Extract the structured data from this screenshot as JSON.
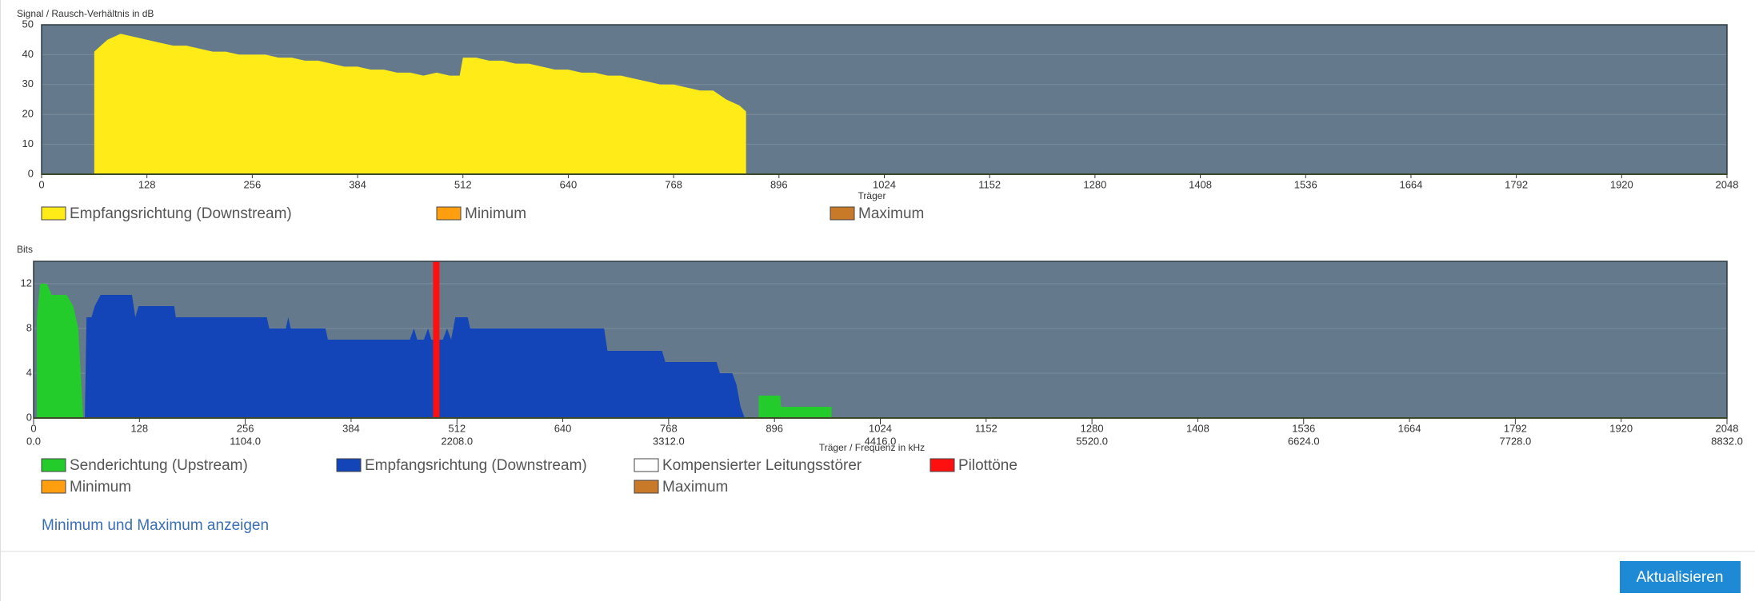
{
  "chart_data": [
    {
      "type": "area",
      "title": "Signal / Rausch-Verhältnis in dB",
      "x_label": "Träger",
      "xlim": [
        0,
        2048
      ],
      "xticks": [
        0,
        128,
        256,
        384,
        512,
        640,
        768,
        896,
        1024,
        1152,
        1280,
        1408,
        1536,
        1664,
        1792,
        1920,
        2048
      ],
      "ylim": [
        0,
        50
      ],
      "yticks": [
        0,
        10,
        20,
        30,
        40,
        50
      ],
      "grid": true,
      "series": [
        {
          "name": "Empfangsrichtung (Downstream)",
          "color": "#ffeb17",
          "x": [
            64,
            80,
            96,
            112,
            128,
            144,
            160,
            176,
            192,
            208,
            224,
            240,
            256,
            272,
            288,
            304,
            320,
            336,
            352,
            368,
            384,
            400,
            416,
            432,
            448,
            464,
            480,
            496,
            508,
            512,
            528,
            544,
            560,
            576,
            592,
            608,
            624,
            640,
            656,
            672,
            688,
            704,
            720,
            736,
            752,
            768,
            784,
            800,
            816,
            832,
            848,
            856
          ],
          "values": [
            41,
            45,
            47,
            46,
            45,
            44,
            43,
            43,
            42,
            41,
            41,
            40,
            40,
            40,
            39,
            39,
            38,
            38,
            37,
            36,
            36,
            35,
            35,
            34,
            34,
            33,
            34,
            33,
            33,
            39,
            39,
            38,
            38,
            37,
            37,
            36,
            35,
            35,
            34,
            34,
            33,
            33,
            32,
            31,
            30,
            30,
            29,
            28,
            28,
            25,
            23,
            21
          ]
        }
      ],
      "legend": [
        {
          "name": "Minimum",
          "color": "#ff9f10"
        },
        {
          "name": "Maximum",
          "color": "#c87a28"
        }
      ]
    },
    {
      "type": "area",
      "title": "Bits",
      "x_label": "Träger / Frequenz in kHz",
      "xlim": [
        0,
        2048
      ],
      "xticks": [
        0,
        128,
        256,
        384,
        512,
        640,
        768,
        896,
        1024,
        1152,
        1280,
        1408,
        1536,
        1664,
        1792,
        1920,
        2048
      ],
      "x2lim": [
        0,
        8832
      ],
      "x2ticks": [
        {
          "value": 0,
          "label": "0.0"
        },
        {
          "value": 1104,
          "label": "1104.0"
        },
        {
          "value": 2208,
          "label": "2208.0"
        },
        {
          "value": 3312,
          "label": "3312.0"
        },
        {
          "value": 4416,
          "label": "4416.0"
        },
        {
          "value": 5520,
          "label": "5520.0"
        },
        {
          "value": 6624,
          "label": "6624.0"
        },
        {
          "value": 7728,
          "label": "7728.0"
        },
        {
          "value": 8832,
          "label": "8832.0"
        }
      ],
      "ylim": [
        0,
        14
      ],
      "yticks": [
        0,
        4,
        8,
        12
      ],
      "grid": true,
      "series": [
        {
          "name": "Senderichtung (Upstream)",
          "color": "#23cc2a",
          "x": [
            4,
            8,
            16,
            22,
            40,
            48,
            54,
            60,
            870,
            877,
            903,
            904,
            965
          ],
          "values": [
            9,
            12,
            12,
            11,
            11,
            10,
            8,
            0,
            null,
            2,
            2,
            1,
            1
          ]
        },
        {
          "name": "Empfangsrichtung (Downstream)",
          "color": "#1345b8",
          "x": [
            62,
            64,
            70,
            74,
            81,
            119,
            123,
            127,
            170,
            172,
            282,
            285,
            305,
            308,
            311,
            353,
            356,
            455,
            460,
            464,
            472,
            477,
            481,
            495,
            500,
            505,
            510,
            525,
            528,
            690,
            694,
            760,
            764,
            826,
            830,
            845,
            850,
            855,
            860
          ],
          "values": [
            0,
            9,
            9,
            10,
            11,
            11,
            9,
            10,
            10,
            9,
            9,
            8,
            8,
            9,
            8,
            8,
            7,
            7,
            8,
            7,
            7,
            8,
            7,
            7,
            8,
            7,
            9,
            9,
            8,
            8,
            6,
            6,
            5,
            5,
            4,
            4,
            3,
            1,
            0
          ]
        },
        {
          "name": "Kompensierter Leitungsstörer",
          "color": "#ffffff"
        },
        {
          "name": "Pilottöne",
          "color": "#ff1010",
          "x": [
            487
          ]
        }
      ],
      "legend": [
        {
          "name": "Minimum",
          "color": "#ff9f10"
        },
        {
          "name": "Maximum",
          "color": "#c87a28"
        }
      ]
    }
  ],
  "link": "Minimum und Maximum anzeigen",
  "button": "Aktualisieren"
}
